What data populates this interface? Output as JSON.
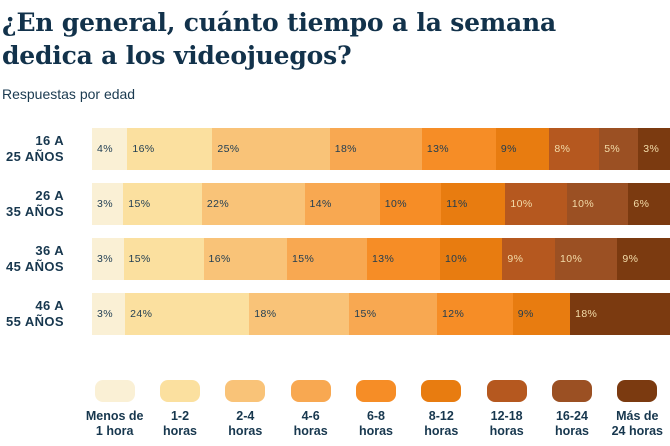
{
  "header": {
    "title_line1": "¿En general, cuánto tiempo a la semana",
    "title_line2": "dedica a los videojuegos?",
    "subtitle": "Respuestas por edad"
  },
  "chart_data": {
    "type": "bar",
    "stacked": true,
    "orientation": "horizontal",
    "unit": "%",
    "title": "¿En general, cuánto tiempo a la semana dedica a los videojuegos?",
    "subtitle": "Respuestas por edad",
    "legend_position": "bottom",
    "categories": [
      "Menos de 1 hora",
      "1-2 horas",
      "2-4 horas",
      "4-6 horas",
      "6-8 horas",
      "8-12 horas",
      "12-18 horas",
      "16-24 horas",
      "Más de 24 horas"
    ],
    "colors": [
      "#FAF0D5",
      "#FBE09F",
      "#F9C378",
      "#F8A851",
      "#F68D26",
      "#E87C10",
      "#B5581F",
      "#9B5023",
      "#7B3A10"
    ],
    "light_text_from_index": 6,
    "rows": [
      {
        "label_lines": [
          "16 A",
          "25 AÑOS"
        ],
        "values": [
          4,
          16,
          25,
          18,
          13,
          9,
          8,
          5,
          3
        ]
      },
      {
        "label_lines": [
          "26 A",
          "35 AÑOS"
        ],
        "values": [
          3,
          15,
          22,
          14,
          10,
          11,
          10,
          10,
          6
        ]
      },
      {
        "label_lines": [
          "36 A",
          "45 AÑOS"
        ],
        "values": [
          3,
          15,
          16,
          15,
          13,
          10,
          9,
          10,
          9
        ]
      },
      {
        "label_lines": [
          "46 A",
          "55 AÑOS"
        ],
        "values": [
          3,
          24,
          18,
          15,
          12,
          9,
          0,
          0,
          18
        ]
      }
    ],
    "legend_labels": [
      [
        "Menos de",
        "1 hora"
      ],
      [
        "1-2",
        "horas"
      ],
      [
        "2-4",
        "horas"
      ],
      [
        "4-6",
        "horas"
      ],
      [
        "6-8",
        "horas"
      ],
      [
        "8-12",
        "horas"
      ],
      [
        "12-18",
        "horas"
      ],
      [
        "16-24",
        "horas"
      ],
      [
        "Más de",
        "24 horas"
      ]
    ],
    "text_colors": {
      "dark": "#1E3C52",
      "light": "#F3DCA9"
    }
  }
}
